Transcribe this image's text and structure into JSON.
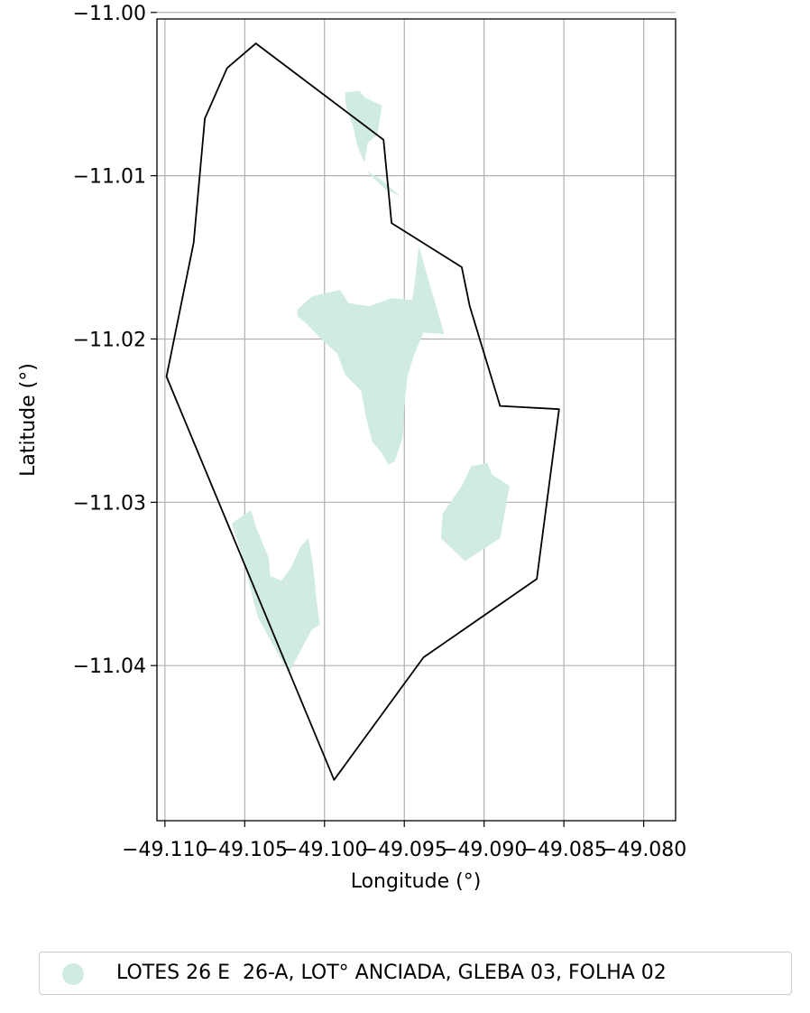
{
  "map": {
    "xlabel": "Longitude (°)",
    "ylabel": "Latitude (°)",
    "xlim": [
      -49.1105,
      -49.078
    ],
    "ylim": [
      -11.0495,
      -11.0004
    ],
    "grid": true,
    "x_ticks": [
      -49.11,
      -49.105,
      -49.1,
      -49.095,
      -49.09,
      -49.085,
      -49.08
    ],
    "y_ticks": [
      -11.0,
      -11.01,
      -11.02,
      -11.03,
      -11.04
    ],
    "x_tick_labels": [
      "−49.110",
      "−49.105",
      "−49.100",
      "−49.095",
      "−49.090",
      "−49.085",
      "−49.080"
    ],
    "y_tick_labels": [
      "−11.00",
      "−11.01",
      "−11.02",
      "−11.03",
      "−11.04"
    ],
    "colors": {
      "boundary": "#000000",
      "fill": "#d0ece0",
      "grid": "#b0b0b0"
    },
    "legend": {
      "placement": "bottom",
      "label": "LOTES 26 E  26-A, LOT° ANCIADA, GLEBA 03, FOLHA 02",
      "marker": "circle"
    },
    "boundary": [
      [
        -49.1061,
        -11.0034
      ],
      [
        -49.1043,
        -11.0019
      ],
      [
        -49.0963,
        -11.0078
      ],
      [
        -49.0958,
        -11.0129
      ],
      [
        -49.0914,
        -11.0156
      ],
      [
        -49.0909,
        -11.018
      ],
      [
        -49.089,
        -11.0241
      ],
      [
        -49.0853,
        -11.0243
      ],
      [
        -49.0867,
        -11.0347
      ],
      [
        -49.0938,
        -11.0395
      ],
      [
        -49.0994,
        -11.047
      ],
      [
        -49.1099,
        -11.0223
      ],
      [
        -49.1082,
        -11.0141
      ],
      [
        -49.1075,
        -11.0065
      ],
      [
        -49.1061,
        -11.0034
      ]
    ],
    "regions": [
      {
        "name": "north-patch",
        "coords": [
          [
            -49.0987,
            -11.0049
          ],
          [
            -49.0978,
            -11.0048
          ],
          [
            -49.0975,
            -11.0052
          ],
          [
            -49.0964,
            -11.0057
          ],
          [
            -49.0967,
            -11.0075
          ],
          [
            -49.0973,
            -11.008
          ],
          [
            -49.0975,
            -11.0092
          ],
          [
            -49.0979,
            -11.0083
          ],
          [
            -49.0982,
            -11.007
          ],
          [
            -49.0985,
            -11.0062
          ],
          [
            -49.0987,
            -11.0055
          ]
        ]
      },
      {
        "name": "north-sliver",
        "coords": [
          [
            -49.0974,
            -11.0097
          ],
          [
            -49.0965,
            -11.0102
          ],
          [
            -49.0952,
            -11.0113
          ],
          [
            -49.0962,
            -11.0108
          ],
          [
            -49.0971,
            -11.01
          ]
        ]
      },
      {
        "name": "central-patch",
        "coords": [
          [
            -49.1017,
            -11.0182
          ],
          [
            -49.1008,
            -11.0174
          ],
          [
            -49.1,
            -11.0172
          ],
          [
            -49.099,
            -11.017
          ],
          [
            -49.0985,
            -11.0178
          ],
          [
            -49.0972,
            -11.018
          ],
          [
            -49.0958,
            -11.0175
          ],
          [
            -49.0945,
            -11.0176
          ],
          [
            -49.0943,
            -11.0162
          ],
          [
            -49.0941,
            -11.0143
          ],
          [
            -49.0925,
            -11.0197
          ],
          [
            -49.0938,
            -11.0196
          ],
          [
            -49.0944,
            -11.021
          ],
          [
            -49.0948,
            -11.0223
          ],
          [
            -49.095,
            -11.0241
          ],
          [
            -49.0951,
            -11.026
          ],
          [
            -49.0956,
            -11.0275
          ],
          [
            -49.096,
            -11.0277
          ],
          [
            -49.0964,
            -11.027
          ],
          [
            -49.097,
            -11.0263
          ],
          [
            -49.0974,
            -11.0248
          ],
          [
            -49.0977,
            -11.0232
          ],
          [
            -49.0987,
            -11.0222
          ],
          [
            -49.0992,
            -11.0209
          ],
          [
            -49.1002,
            -11.02
          ],
          [
            -49.1012,
            -11.019
          ],
          [
            -49.1017,
            -11.0186
          ]
        ]
      },
      {
        "name": "east-patch",
        "coords": [
          [
            -49.0908,
            -11.0278
          ],
          [
            -49.0898,
            -11.0276
          ],
          [
            -49.0895,
            -11.0283
          ],
          [
            -49.0884,
            -11.029
          ],
          [
            -49.089,
            -11.0322
          ],
          [
            -49.0912,
            -11.0336
          ],
          [
            -49.0927,
            -11.0322
          ],
          [
            -49.0926,
            -11.0307
          ],
          [
            -49.0914,
            -11.029
          ]
        ]
      },
      {
        "name": "south-west-patch",
        "coords": [
          [
            -49.1051,
            -11.0308
          ],
          [
            -49.1046,
            -11.0305
          ],
          [
            -49.1043,
            -11.0315
          ],
          [
            -49.1035,
            -11.0334
          ],
          [
            -49.1034,
            -11.0345
          ],
          [
            -49.1027,
            -11.0348
          ],
          [
            -49.1021,
            -11.034
          ],
          [
            -49.1015,
            -11.0327
          ],
          [
            -49.101,
            -11.0322
          ],
          [
            -49.1007,
            -11.034
          ],
          [
            -49.1005,
            -11.036
          ],
          [
            -49.1003,
            -11.0375
          ],
          [
            -49.1008,
            -11.0378
          ],
          [
            -49.1022,
            -11.0404
          ],
          [
            -49.1028,
            -11.0395
          ],
          [
            -49.1042,
            -11.037
          ],
          [
            -49.1051,
            -11.0335
          ],
          [
            -49.1058,
            -11.0313
          ]
        ]
      }
    ]
  }
}
